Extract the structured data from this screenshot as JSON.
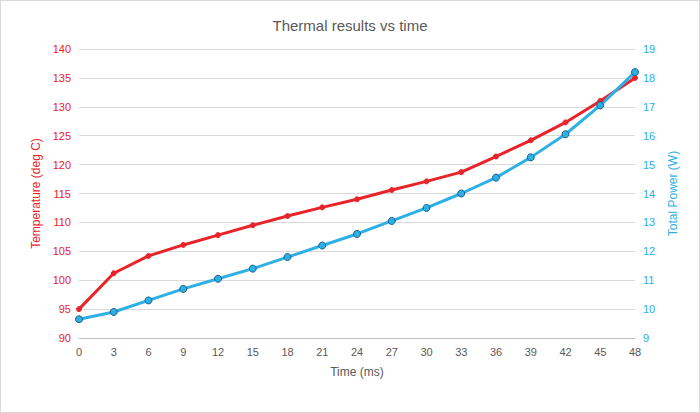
{
  "chart_data": {
    "type": "line",
    "title": "Thermal results vs time",
    "x_label": "Time (ms)",
    "y_label": "Temperature (deg C)",
    "y2_label": "Total Power (W)",
    "x": [
      0,
      3,
      6,
      9,
      12,
      15,
      18,
      21,
      24,
      27,
      30,
      33,
      36,
      39,
      42,
      45,
      48
    ],
    "xlim": [
      0,
      48
    ],
    "xticks": [
      0,
      3,
      6,
      9,
      12,
      15,
      18,
      21,
      24,
      27,
      30,
      33,
      36,
      39,
      42,
      45,
      48
    ],
    "ylim": [
      90,
      140
    ],
    "yticks": [
      90,
      95,
      100,
      105,
      110,
      115,
      120,
      125,
      130,
      135,
      140
    ],
    "y2lim": [
      9,
      19
    ],
    "y2ticks": [
      9,
      10,
      11,
      12,
      13,
      14,
      15,
      16,
      17,
      18,
      19
    ],
    "grid": true,
    "series": [
      {
        "name": "Temperature",
        "axis": "y",
        "color": "#e8242a",
        "marker": "circle",
        "line_style": "solid",
        "values": [
          95,
          101.2,
          104.2,
          106.1,
          107.8,
          109.5,
          111.1,
          112.6,
          114,
          115.6,
          117.1,
          118.7,
          121.4,
          124.2,
          127.3,
          131,
          135
        ]
      },
      {
        "name": "Total Power",
        "axis": "y2",
        "color": "#2db0e6",
        "marker": "circle",
        "line_style": "solid",
        "values": [
          9.65,
          9.9,
          10.3,
          10.7,
          11.05,
          11.4,
          11.8,
          12.2,
          12.6,
          13.05,
          13.5,
          14.0,
          14.55,
          15.25,
          16.05,
          17.05,
          18.2
        ]
      }
    ]
  }
}
